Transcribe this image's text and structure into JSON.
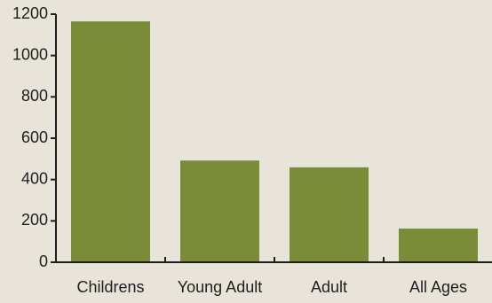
{
  "colors": {
    "background": "#e9e4da",
    "bar": "#7b8c38",
    "axis": "#1e1e1e"
  },
  "chart_data": {
    "type": "bar",
    "title": "",
    "xlabel": "",
    "ylabel": "",
    "categories": [
      "Childrens",
      "Young Adult",
      "Adult",
      "All Ages"
    ],
    "values": [
      1165,
      492,
      459,
      163
    ],
    "ylim": [
      0,
      1200
    ],
    "yticks": [
      0,
      200,
      400,
      600,
      800,
      1000,
      1200
    ],
    "grid": false,
    "legend": "none"
  }
}
